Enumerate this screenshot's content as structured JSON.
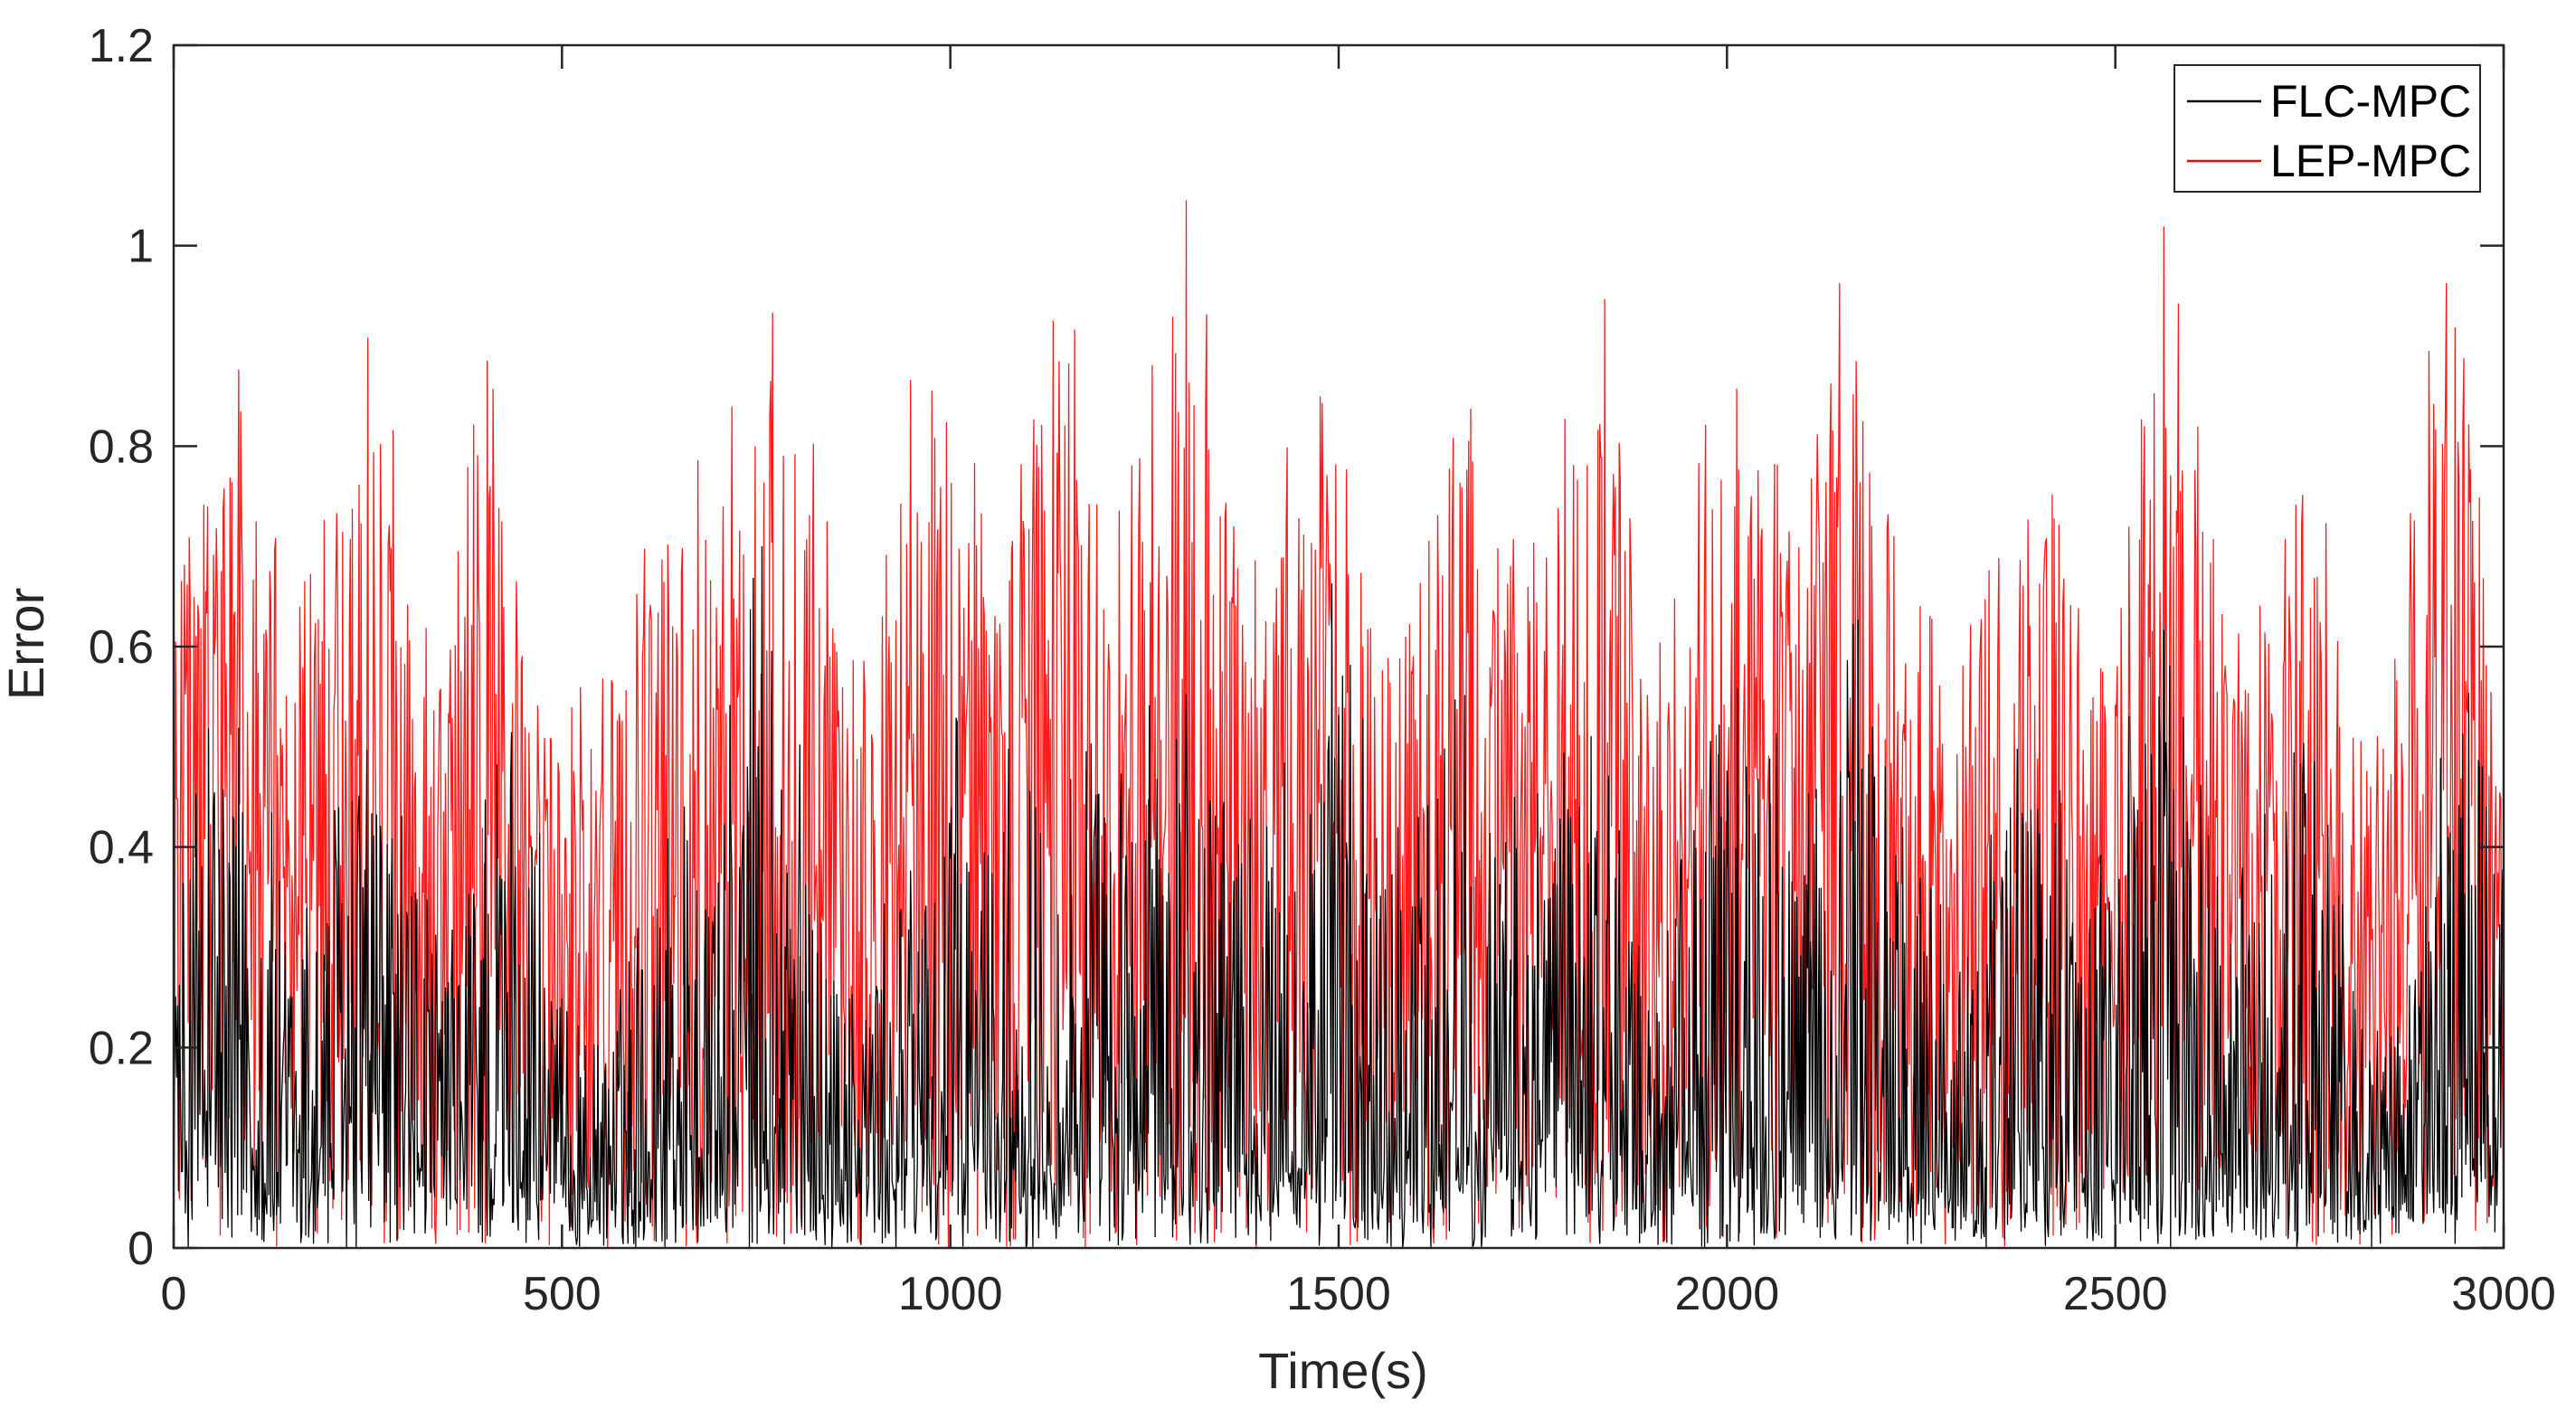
{
  "chart_data": {
    "type": "line",
    "title": "",
    "xlabel": "Time(s)",
    "ylabel": "Error",
    "xlim": [
      0,
      3000
    ],
    "ylim": [
      0,
      1.2
    ],
    "x_ticks": [
      0,
      500,
      1000,
      1500,
      2000,
      2500,
      3000
    ],
    "y_ticks": [
      0,
      0.2,
      0.4,
      0.6,
      0.8,
      1,
      1.2
    ],
    "x_tick_labels": [
      "0",
      "500",
      "1000",
      "1500",
      "2000",
      "2500",
      "3000"
    ],
    "y_tick_labels": [
      "0",
      "0.2",
      "0.4",
      "0.6",
      "0.8",
      "1",
      "1.2"
    ],
    "grid": false,
    "legend_position": "top-right",
    "colors": {
      "FLC-MPC": "#000000",
      "LEP-MPC": "#ff0000"
    },
    "series": [
      {
        "name": "FLC-MPC",
        "color": "#000000",
        "envelope": {
          "x": [
            0,
            50,
            100,
            150,
            200,
            250,
            300,
            350,
            400,
            450,
            500,
            550,
            600,
            650,
            700,
            750,
            800,
            850,
            900,
            950,
            1000,
            1050,
            1100,
            1150,
            1200,
            1250,
            1300,
            1350,
            1400,
            1450,
            1500,
            1550,
            1600,
            1650,
            1700,
            1750,
            1800,
            1850,
            1900,
            1950,
            2000,
            2050,
            2100,
            2150,
            2200,
            2250,
            2300,
            2350,
            2400,
            2450,
            2500,
            2550,
            2600,
            2650,
            2700,
            2750,
            2800,
            2850,
            2900,
            2950,
            3000
          ],
          "baseline": [
            0.08,
            0.12,
            0.1,
            0.08,
            0.1,
            0.14,
            0.1,
            0.08,
            0.1,
            0.11,
            0.07,
            0.05,
            0.09,
            0.1,
            0.08,
            0.12,
            0.1,
            0.07,
            0.06,
            0.09,
            0.1,
            0.09,
            0.1,
            0.11,
            0.09,
            0.1,
            0.12,
            0.1,
            0.08,
            0.1,
            0.1,
            0.08,
            0.09,
            0.1,
            0.09,
            0.1,
            0.12,
            0.1,
            0.07,
            0.08,
            0.1,
            0.1,
            0.09,
            0.1,
            0.1,
            0.09,
            0.06,
            0.08,
            0.1,
            0.08,
            0.08,
            0.1,
            0.09,
            0.08,
            0.1,
            0.11,
            0.07,
            0.05,
            0.08,
            0.1,
            0.1
          ],
          "peak": [
            0.35,
            0.6,
            0.55,
            0.35,
            0.45,
            0.55,
            0.45,
            0.3,
            0.5,
            0.55,
            0.25,
            0.2,
            0.35,
            0.5,
            0.45,
            0.75,
            0.55,
            0.3,
            0.3,
            0.45,
            0.55,
            0.45,
            0.55,
            0.6,
            0.45,
            0.55,
            0.65,
            0.55,
            0.4,
            0.6,
            0.68,
            0.45,
            0.45,
            0.62,
            0.4,
            0.5,
            0.58,
            0.48,
            0.3,
            0.45,
            0.62,
            0.55,
            0.45,
            0.72,
            0.6,
            0.4,
            0.3,
            0.45,
            0.58,
            0.4,
            0.45,
            0.68,
            0.5,
            0.38,
            0.5,
            0.6,
            0.3,
            0.2,
            0.42,
            0.7,
            0.5
          ]
        }
      },
      {
        "name": "LEP-MPC",
        "color": "#ff0000",
        "envelope": {
          "x": [
            0,
            50,
            100,
            150,
            200,
            250,
            300,
            350,
            400,
            450,
            500,
            550,
            600,
            650,
            700,
            750,
            800,
            850,
            900,
            950,
            1000,
            1050,
            1100,
            1150,
            1200,
            1250,
            1300,
            1350,
            1400,
            1450,
            1500,
            1550,
            1600,
            1650,
            1700,
            1750,
            1800,
            1850,
            1900,
            1950,
            2000,
            2050,
            2100,
            2150,
            2200,
            2250,
            2300,
            2350,
            2400,
            2450,
            2500,
            2550,
            2600,
            2650,
            2700,
            2750,
            2800,
            2850,
            2900,
            2950,
            3000
          ],
          "baseline": [
            0.35,
            0.4,
            0.35,
            0.3,
            0.35,
            0.38,
            0.35,
            0.3,
            0.35,
            0.38,
            0.3,
            0.28,
            0.3,
            0.33,
            0.3,
            0.38,
            0.35,
            0.3,
            0.28,
            0.32,
            0.38,
            0.35,
            0.38,
            0.4,
            0.35,
            0.38,
            0.4,
            0.38,
            0.32,
            0.35,
            0.4,
            0.32,
            0.33,
            0.38,
            0.33,
            0.36,
            0.4,
            0.36,
            0.3,
            0.33,
            0.38,
            0.36,
            0.35,
            0.4,
            0.38,
            0.33,
            0.28,
            0.32,
            0.36,
            0.3,
            0.33,
            0.4,
            0.35,
            0.3,
            0.35,
            0.38,
            0.28,
            0.27,
            0.33,
            0.38,
            0.28
          ],
          "peak": [
            0.72,
            0.81,
            0.94,
            0.62,
            0.75,
            0.93,
            0.76,
            0.6,
            0.92,
            0.65,
            0.55,
            0.6,
            0.7,
            0.79,
            0.8,
            0.91,
            1.02,
            0.68,
            0.65,
            0.88,
            0.96,
            0.73,
            0.86,
            1.02,
            0.7,
            0.84,
            1.08,
            0.86,
            0.72,
            0.85,
            0.88,
            0.66,
            0.72,
            0.98,
            0.7,
            0.73,
            0.88,
            0.98,
            0.58,
            0.74,
            0.99,
            0.82,
            0.72,
            1.02,
            0.85,
            0.65,
            0.6,
            0.76,
            0.86,
            0.64,
            0.68,
            1.08,
            0.93,
            0.6,
            0.72,
            0.85,
            0.6,
            0.5,
            0.97,
            1.0,
            0.48
          ]
        }
      }
    ]
  }
}
